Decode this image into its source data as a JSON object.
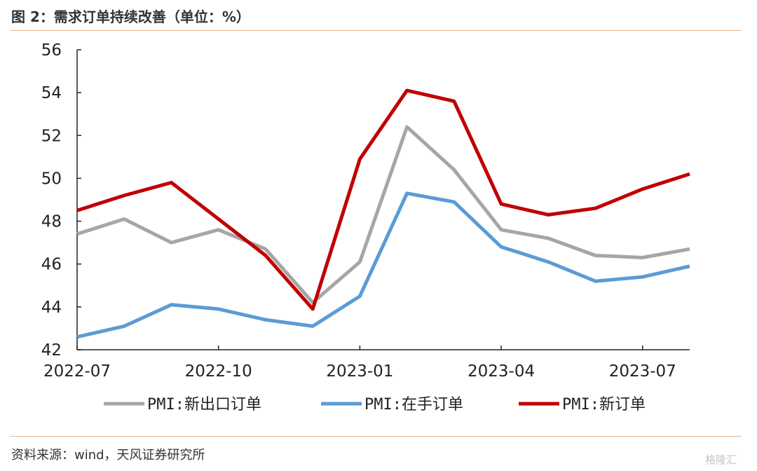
{
  "header": {
    "title": "图 2：需求订单持续改善（单位：%）"
  },
  "footer": {
    "source": "资料来源：wind，天风证券研究所",
    "watermark": "格隆汇"
  },
  "chart_data": {
    "type": "line",
    "x": [
      "2022-07",
      "2022-08",
      "2022-09",
      "2022-10",
      "2022-11",
      "2022-12",
      "2023-01",
      "2023-02",
      "2023-03",
      "2023-04",
      "2023-05",
      "2023-06",
      "2023-07",
      "2023-08"
    ],
    "x_tick_labels": [
      "2022-07",
      "2022-10",
      "2023-01",
      "2023-04",
      "2023-07"
    ],
    "ylim": [
      42,
      56
    ],
    "y_ticks": [
      42,
      44,
      46,
      48,
      50,
      52,
      54,
      56
    ],
    "grid": false,
    "legend_position": "bottom",
    "series": [
      {
        "name": "PMI:新出口订单",
        "color": "#a6a6a6",
        "values": [
          47.4,
          48.1,
          47.0,
          47.6,
          46.7,
          44.2,
          46.1,
          52.4,
          50.4,
          47.6,
          47.2,
          46.4,
          46.3,
          46.7
        ]
      },
      {
        "name": "PMI:在手订单",
        "color": "#5b9bd5",
        "values": [
          42.6,
          43.1,
          44.1,
          43.9,
          43.4,
          43.1,
          44.5,
          49.3,
          48.9,
          46.8,
          46.1,
          45.2,
          45.4,
          45.9
        ]
      },
      {
        "name": "PMI:新订单",
        "color": "#c00000",
        "values": [
          48.5,
          49.2,
          49.8,
          48.1,
          46.4,
          43.9,
          50.9,
          54.1,
          53.6,
          48.8,
          48.3,
          48.6,
          49.5,
          50.2
        ]
      }
    ]
  }
}
